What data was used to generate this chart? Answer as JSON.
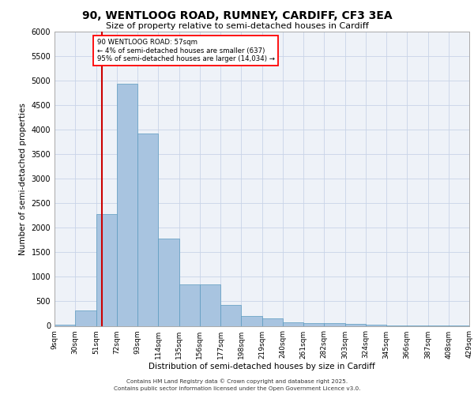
{
  "title_line1": "90, WENTLOOG ROAD, RUMNEY, CARDIFF, CF3 3EA",
  "title_line2": "Size of property relative to semi-detached houses in Cardiff",
  "xlabel": "Distribution of semi-detached houses by size in Cardiff",
  "ylabel": "Number of semi-detached properties",
  "property_size": 57,
  "annotation_line1": "90 WENTLOOG ROAD: 57sqm",
  "annotation_line2": "← 4% of semi-detached houses are smaller (637)",
  "annotation_line3": "95% of semi-detached houses are larger (14,034) →",
  "bin_edges": [
    9,
    30,
    51,
    72,
    93,
    114,
    135,
    156,
    177,
    198,
    219,
    240,
    261,
    282,
    303,
    324,
    345,
    366,
    387,
    408,
    429
  ],
  "bin_labels": [
    "9sqm",
    "30sqm",
    "51sqm",
    "72sqm",
    "93sqm",
    "114sqm",
    "135sqm",
    "156sqm",
    "177sqm",
    "198sqm",
    "219sqm",
    "240sqm",
    "261sqm",
    "282sqm",
    "303sqm",
    "324sqm",
    "345sqm",
    "366sqm",
    "387sqm",
    "408sqm",
    "429sqm"
  ],
  "bar_heights": [
    30,
    310,
    2280,
    4940,
    3920,
    1780,
    840,
    840,
    430,
    200,
    150,
    80,
    50,
    55,
    40,
    20,
    10,
    8,
    5,
    3
  ],
  "bar_color": "#a8c4e0",
  "bar_edge_color": "#5a9abf",
  "red_line_color": "#cc0000",
  "background_color": "#eef2f8",
  "grid_color": "#c8d4e8",
  "ylim": [
    0,
    6000
  ],
  "yticks": [
    0,
    500,
    1000,
    1500,
    2000,
    2500,
    3000,
    3500,
    4000,
    4500,
    5000,
    5500,
    6000
  ],
  "footer_line1": "Contains HM Land Registry data © Crown copyright and database right 2025.",
  "footer_line2": "Contains public sector information licensed under the Open Government Licence v3.0."
}
